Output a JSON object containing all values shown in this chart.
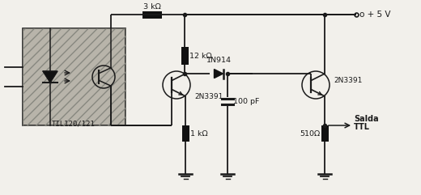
{
  "background_color": "#f2f0eb",
  "fig_width": 5.2,
  "fig_height": 2.41,
  "dpi": 100,
  "vcc_label": "o + 5 V",
  "optocoupler_label": "TIL120/121",
  "transistor1_label": "2N3391",
  "transistor2_label": "2N3391",
  "diode_label": "1N914",
  "resistor1_label": "3 kΩ",
  "resistor2_label": "12 kΩ",
  "resistor3_label": "1 kΩ",
  "resistor4_label": "510Ω",
  "capacitor_label": "100 pF",
  "output_label1": "Salda",
  "output_label2": "TTL",
  "wire_color": "#1a1a1a",
  "fill_color": "#111111"
}
